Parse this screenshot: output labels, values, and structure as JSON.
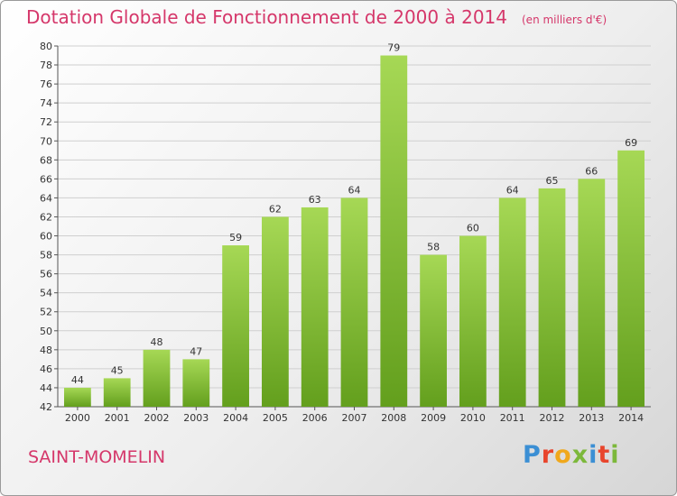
{
  "header": {
    "title": "Dotation Globale de Fonctionnement de 2000 à 2014",
    "subtitle": "(en milliers d'€)"
  },
  "commune": "SAINT-MOMELIN",
  "logo": {
    "text": "Proxiti",
    "letter_colors": [
      "#3b8fd4",
      "#e8452c",
      "#f0a81c",
      "#7cb83a",
      "#3b8fd4",
      "#e8452c",
      "#7cb83a"
    ]
  },
  "colors": {
    "accent": "#d5376a",
    "bar_light": "#a6d855",
    "bar_dark": "#639f1d"
  },
  "chart_data": {
    "type": "bar",
    "categories": [
      "2000",
      "2001",
      "2002",
      "2003",
      "2004",
      "2005",
      "2006",
      "2007",
      "2008",
      "2009",
      "2010",
      "2011",
      "2012",
      "2013",
      "2014"
    ],
    "values": [
      44,
      45,
      48,
      47,
      59,
      62,
      63,
      64,
      79,
      58,
      60,
      64,
      65,
      66,
      69
    ],
    "title": "Dotation Globale de Fonctionnement de 2000 à 2014",
    "subtitle": "(en milliers d'€)",
    "xlabel": "",
    "ylabel": "",
    "ylim": [
      42,
      80
    ],
    "yticks": [
      42,
      44,
      46,
      48,
      50,
      52,
      54,
      56,
      58,
      60,
      62,
      64,
      66,
      68,
      70,
      72,
      74,
      76,
      78,
      80
    ],
    "grid": true,
    "legend": "none",
    "data_labels": true
  }
}
